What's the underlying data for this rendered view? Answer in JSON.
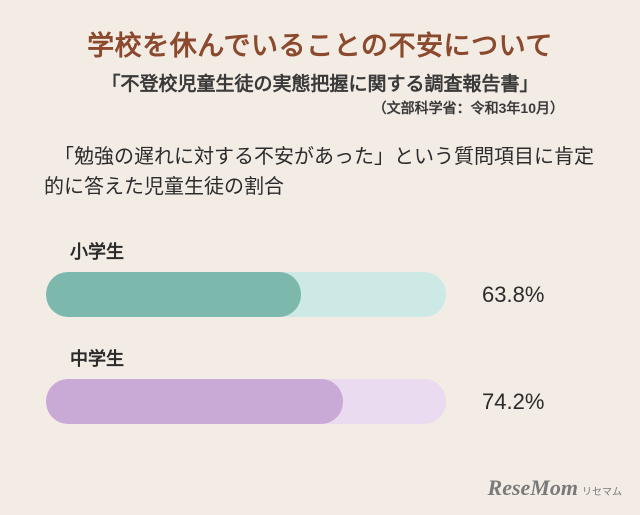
{
  "background_color": "#f3ece5",
  "title": {
    "text": "学校を休んでいることの不安について",
    "color": "#8b4a2e",
    "fontsize": 27
  },
  "subtitle": {
    "text": "「不登校児童生徒の実態把握に関する調査報告書」",
    "color": "#3a3a3a",
    "fontsize": 19
  },
  "source": {
    "text": "（文部科学省：令和3年10月）",
    "color": "#3a3a3a",
    "fontsize": 14
  },
  "question": {
    "text": "　「勉強の遅れに対する不安があった」という質問項目に肯定的に答えた児童生徒の割合",
    "color": "#2b2b2b",
    "fontsize": 20
  },
  "chart": {
    "type": "bar",
    "track_width": 400,
    "track_height": 45,
    "border_radius": 22,
    "max_value": 100,
    "text_color": "#2b2b2b",
    "label_fontsize": 18,
    "value_fontsize": 22,
    "rows": [
      {
        "label": "小学生",
        "value": 63.8,
        "display": "63.8%",
        "fill_color": "#7cb9ac",
        "track_color": "#cde9e5"
      },
      {
        "label": "中学生",
        "value": 74.2,
        "display": "74.2%",
        "fill_color": "#c9a9d6",
        "track_color": "#ebdbf0"
      }
    ]
  },
  "logo": {
    "main": "ReseMom",
    "sub": "リセマム",
    "color": "#7a7a7a",
    "main_fontsize": 22,
    "sub_fontsize": 10
  }
}
